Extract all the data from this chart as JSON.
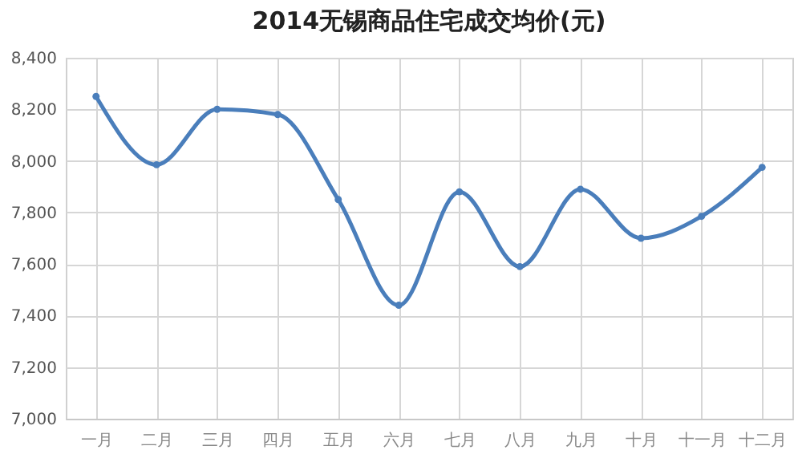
{
  "chart_data": {
    "type": "line",
    "title": "2014无锡商品住宅成交均价(元)",
    "categories": [
      "一月",
      "二月",
      "三月",
      "四月",
      "五月",
      "六月",
      "七月",
      "八月",
      "九月",
      "十月",
      "十一月",
      "十二月"
    ],
    "series": [
      {
        "color": "#4a7ebb",
        "values": [
          8250,
          7985,
          8200,
          8180,
          7850,
          7440,
          7880,
          7590,
          7890,
          7700,
          7785,
          7975
        ]
      }
    ],
    "ylim": [
      7000,
      8400
    ],
    "yticks": [
      {
        "value": 7000,
        "label": "7,000"
      },
      {
        "value": 7200,
        "label": "7,200"
      },
      {
        "value": 7400,
        "label": "7,400"
      },
      {
        "value": 7600,
        "label": "7,600"
      },
      {
        "value": 7800,
        "label": "7,800"
      },
      {
        "value": 8000,
        "label": "8,000"
      },
      {
        "value": 8200,
        "label": "8,200"
      },
      {
        "value": 8400,
        "label": "8,400"
      }
    ],
    "grid": true,
    "marker": "circle",
    "legend": false
  }
}
